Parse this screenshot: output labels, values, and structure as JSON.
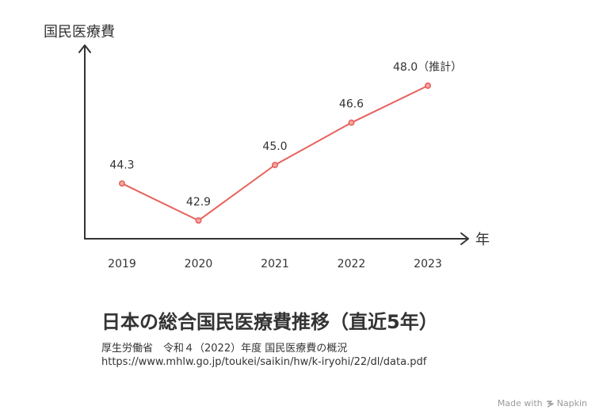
{
  "chart_data": {
    "type": "line",
    "ylabel": "国民医療費",
    "xlabel": "年",
    "categories": [
      "2019",
      "2020",
      "2021",
      "2022",
      "2023"
    ],
    "values": [
      44.3,
      42.9,
      45.0,
      46.6,
      48.0
    ],
    "data_labels": [
      "44.3",
      "42.9",
      "45.0",
      "46.6",
      "48.0（推計）"
    ],
    "ylim": [
      42.0,
      48.7
    ],
    "grid": false,
    "line_color": "#e8615c"
  },
  "caption": {
    "title": "日本の総合国民医療費推移（直近5年）",
    "source_line1": "厚生労働省　令和４（2022）年度 国民医療費の概況",
    "source_line2": "https://www.mhlw.go.jp/toukei/saikin/hw/k-iryohi/22/dl/data.pdf"
  },
  "watermark": {
    "text": "Made with",
    "brand": "Napkin",
    "icon": "napkin-logo-icon"
  }
}
